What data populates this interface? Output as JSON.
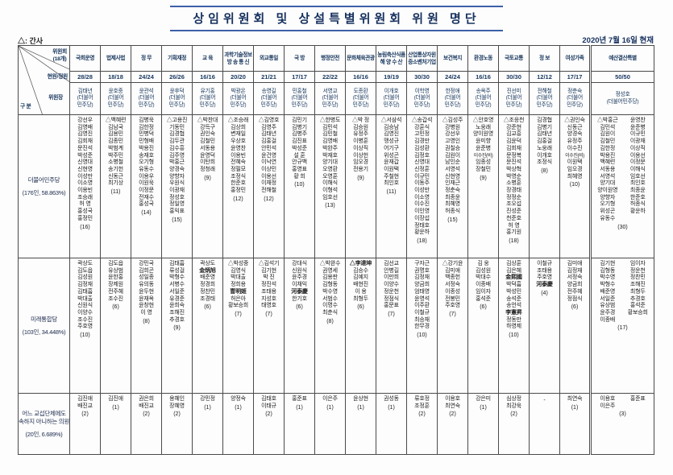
{
  "meta": {
    "title": "상임위원회 및 상설특별위원회 위원 명단",
    "legend": "△: 간사",
    "date": "2020년 7월 16일 현재"
  },
  "corner": {
    "committee": "위원회\n(18개)",
    "quota": "현원/정원",
    "gubun": "구 분",
    "chair": "위원장"
  },
  "committees": [
    {
      "name": "국회운영",
      "quota": "28/28",
      "chair": "김태년",
      "chair_party": "(더불어\n민주당)"
    },
    {
      "name": "법제사법",
      "quota": "18/18",
      "chair": "윤호중",
      "chair_party": "(더불어\n민주당)"
    },
    {
      "name": "정  무",
      "quota": "24/24",
      "chair": "윤관석",
      "chair_party": "(더불어\n민주당)"
    },
    {
      "name": "기획재정",
      "quota": "26/26",
      "chair": "윤후덕",
      "chair_party": "(더불어\n민주당)"
    },
    {
      "name": "교  육",
      "quota": "16/16",
      "chair": "유기홍",
      "chair_party": "(더불어\n민주당)"
    },
    {
      "name": "과학기술정보\n방 송 통 신",
      "quota": "20/20",
      "chair": "박광온",
      "chair_party": "(더불어\n민주당)"
    },
    {
      "name": "외교통일",
      "quota": "21/21",
      "chair": "송영길",
      "chair_party": "(더불어\n민주당)"
    },
    {
      "name": "국  방",
      "quota": "17/17",
      "chair": "민홍철",
      "chair_party": "(더불어\n민주당)"
    },
    {
      "name": "행정안전",
      "quota": "22/22",
      "chair": "서영교",
      "chair_party": "(더불어\n민주당)"
    },
    {
      "name": "문화체육관광",
      "quota": "16/16",
      "chair": "도종환",
      "chair_party": "(더불어\n민주당)"
    },
    {
      "name": "농림축산식품\n해 양 수 산",
      "quota": "19/19",
      "chair": "이개호",
      "chair_party": "(더불어\n민주당)"
    },
    {
      "name": "산업통상자원\n중소벤처기업",
      "quota": "30/30",
      "chair": "이학영",
      "chair_party": "(더불어\n민주당)"
    },
    {
      "name": "보건복지",
      "quota": "24/24",
      "chair": "한정애",
      "chair_party": "(더불어\n민주당)"
    },
    {
      "name": "환경노동",
      "quota": "16/16",
      "chair": "송옥주",
      "chair_party": "(더불어\n민주당)"
    },
    {
      "name": "국토교통",
      "quota": "30/30",
      "chair": "진선미",
      "chair_party": "(더불어\n민주당)"
    },
    {
      "name": "정  보",
      "quota": "12/12",
      "chair": "전해철",
      "chair_party": "(더불어\n민주당)"
    },
    {
      "name": "여성가족",
      "quota": "17/17",
      "chair": "정춘숙",
      "chair_party": "(더불어\n민주당)"
    },
    {
      "name": "예산결산특별",
      "quota": "50/50",
      "chair": "정성호",
      "chair_party": "(더불어민주당)",
      "wide": true
    }
  ],
  "parties": [
    {
      "label": "더불어민주당",
      "sub": "(176인, 58.863%)",
      "cells": [
        {
          "members": [
            "강선우",
            "김영배",
            "김영진",
            "김회재",
            "문진석",
            "박성준",
            "신영대",
            "신현영",
            "이성만",
            "이소영",
            "이용빈",
            "조승래",
            "허 영",
            "홍성국",
            "홍정민"
          ],
          "count": "(16)"
        },
        {
          "members": [
            "△백혜련",
            "김남국",
            "김용민",
            "김종민",
            "박범계",
            "박주민",
            "소병철",
            "송기헌",
            "신동근",
            "최기상"
          ],
          "count": "(11)"
        },
        {
          "members": [
            "김병욱",
            "김한정",
            "민병덕",
            "민형배",
            "박용진",
            "송재호",
            "오기형",
            "유동수",
            "이용우",
            "이원욱",
            "이정문",
            "전재수",
            "홍성국"
          ],
          "count": "(14)"
        },
        {
          "members": [
            "△고용진",
            "기동민",
            "김경협",
            "김두관",
            "김수흥",
            "김주영",
            "박홍근",
            "양경숙",
            "양향자",
            "우원식",
            "이광재",
            "정성호",
            "정일영",
            "홍익표"
          ],
          "count": "(15)"
        },
        {
          "members": [
            "△박찬대",
            "강득구",
            "권인숙",
            "김철민",
            "서동용",
            "윤영덕",
            "이탄희",
            "정청래"
          ],
          "count": "(9)"
        },
        {
          "members": [
            "△조승래",
            "김상희",
            "변재일",
            "우상호",
            "윤영찬",
            "이용빈",
            "전혜숙",
            "정필모",
            "조정식",
            "한준호",
            "홍정민"
          ],
          "count": "(12)"
        },
        {
          "members": [
            "△김영호",
            "김영주",
            "김태년",
            "김홍걸",
            "안민석",
            "윤건영",
            "이낙연",
            "이상민",
            "이용선",
            "이재정",
            "전해철"
          ],
          "count": "(12)"
        },
        {
          "members": [
            "김민기",
            "김병기",
            "김병주",
            "김진표",
            "박성준",
            "설 훈",
            "안규백",
            "홍영표",
            "황 희"
          ],
          "count": "(10)"
        },
        {
          "members": [
            "△한병도",
            "김민석",
            "김민철",
            "김영배",
            "박완주",
            "박재호",
            "양기대",
            "오영환",
            "오영훈",
            "이해식",
            "이형석",
            "임호선"
          ],
          "count": "(13)"
        },
        {
          "members": [
            "△박 정",
            "김승원",
            "유정주",
            "이병훈",
            "이상직",
            "이상헌",
            "임오경",
            "전용기"
          ],
          "count": "(9)"
        },
        {
          "members": [
            "△서삼석",
            "김승남",
            "김영진",
            "맹성규",
            "어기구",
            "위성곤",
            "윤재갑",
            "이원택",
            "주철현",
            "최인호"
          ],
          "count": "(11)"
        },
        {
          "members": [
            "△송갑석",
            "강훈식",
            "고민정",
            "김경만",
            "김성환",
            "김정호",
            "신영대",
            "신정훈",
            "이규민",
            "이동주",
            "이성만",
            "이소영",
            "이수진",
            "이인영",
            "이장섭",
            "정태호",
            "황운하"
          ],
          "count": "(18)"
        },
        {
          "members": [
            "△김성주",
            "강병원",
            "강선우",
            "고영인",
            "권칠승",
            "김원이",
            "남인순",
            "서영석",
            "신현영",
            "인재근",
            "정춘숙",
            "최종윤",
            "최혜영",
            "허종식"
          ],
          "count": "(15)"
        },
        {
          "members": [
            "△안호영",
            "노웅래",
            "양이원영",
            "윤미향",
            "윤준병",
            "이수진(비)",
            "임종성",
            "장철민"
          ],
          "count": "(9)"
        },
        {
          "members": [
            "△조응천",
            "강준현",
            "김교흥",
            "김윤덕",
            "김회재",
            "문정복",
            "문진석",
            "박상혁",
            "박영순",
            "소병훈",
            "장경태",
            "정정순",
            "조오섭",
            "진성준",
            "천준호",
            "허 영",
            "홍기원"
          ],
          "count": "(18)"
        },
        {
          "members": [
            "김경협",
            "김병기",
            "김태년",
            "김홍걸",
            "노웅래",
            "이개호",
            "조정식"
          ],
          "count": "(8)"
        },
        {
          "members": [
            "△권인숙",
            "신동근",
            "양경숙",
            "유정주",
            "이수진",
            "이수진(비)",
            "이원택",
            "임오경",
            "최혜영"
          ],
          "count": "(10)"
        },
        {
          "members": [
            "△박홍근",
            "김민석",
            "김원이",
            "김철민",
            "김한정",
            "박용진",
            "백혜련",
            "서동용",
            "서영석",
            "양기대",
            "양이원영",
            "양향자",
            "오기형",
            "위성곤",
            "유동수",
            "윤영찬",
            "윤준병",
            "이규민",
            "이광재",
            "이상직",
            "이용선",
            "이정문",
            "이해식",
            "임호선",
            "최인호",
            "최종윤",
            "한준호",
            "허종식",
            "황운하"
          ],
          "count": "(30)"
        }
      ]
    },
    {
      "label": "미래통합당",
      "sub": "(103인, 34.448%)",
      "cells": [
        {
          "members": [
            "곽상도",
            "김도읍",
            "김성원",
            "김정재",
            "김태흠",
            "박대출",
            "신원식",
            "이양수",
            "조수진",
            "주호영"
          ],
          "count": "(10)"
        },
        {
          "members": [
            "김도읍",
            "유상범",
            "윤한홍",
            "장제원",
            "전주혜",
            "조수진"
          ],
          "count": "(6)"
        },
        {
          "members": [
            "강민국",
            "김희곤",
            "성일종",
            "유의동",
            "윤두현",
            "윤재옥",
            "윤창현",
            "이 영"
          ],
          "count": "(8)"
        },
        {
          "members": [
            "김태흠",
            "류성걸",
            "박형수",
            "서병수",
            "서일준",
            "유경준",
            "윤희숙",
            "조해진",
            "추경호"
          ],
          "count": "(9)"
        },
        {
          "members": [
            "곽상도",
            "金炳旭",
            "배준영",
            "정경희",
            "정찬민",
            "조경태"
          ],
          "count": "(6)"
        },
        {
          "members": [
            "△박성중",
            "김영식",
            "박대출",
            "정희용",
            "曺明姬",
            "허은아",
            "황보승희"
          ],
          "count": "(7)"
        },
        {
          "members": [
            "△김석기",
            "김기현",
            "박 진",
            "정진석",
            "조태용",
            "지성호",
            "태영호"
          ],
          "count": "(7)"
        },
        {
          "members": [
            "강대식",
            "신원식",
            "윤주경",
            "이채익",
            "河泰慶",
            "한기호"
          ],
          "count": "(6)"
        },
        {
          "members": [
            "△박완수",
            "권영세",
            "김용판",
            "김형동",
            "박수영",
            "서범수",
            "이명수",
            "최춘식"
          ],
          "count": "(8)"
        },
        {
          "members": [
            "△李達坤",
            "김승수",
            "김예지",
            "배현진",
            "이 용",
            "최형두"
          ],
          "count": "(6)"
        },
        {
          "members": [
            "김선교",
            "안병길",
            "이만희",
            "이양수",
            "정운천",
            "정점식",
            "홍문표"
          ],
          "count": "(7)"
        },
        {
          "members": [
            "구자근",
            "권명호",
            "김정재",
            "양금희",
            "엄태영",
            "윤영석",
            "이주환",
            "이철규",
            "최승재",
            "한무경"
          ],
          "count": "(10)"
        },
        {
          "members": [
            "△강기윤",
            "김미애",
            "백종헌",
            "서정숙",
            "이종성",
            "전봉민",
            "주호영"
          ],
          "count": "(7)"
        },
        {
          "members": [
            "김 웅",
            "김성원",
            "박대수",
            "이종배",
            "임이자",
            "홍석준"
          ],
          "count": "(6)"
        },
        {
          "members": [
            "김상훈",
            "김은혜",
            "金熙國",
            "박덕흠",
            "박성민",
            "송석준",
            "송언석",
            "李憲昇",
            "정동만",
            "하영제"
          ],
          "count": "(10)"
        },
        {
          "members": [
            "이철규",
            "조태용",
            "주호영",
            "河泰慶"
          ],
          "count": "(4)"
        },
        {
          "members": [
            "김미애",
            "김정재",
            "서정숙",
            "양금희",
            "전주혜",
            "정점식"
          ],
          "count": "(6)"
        },
        {
          "members": [
            "김기현",
            "김형동",
            "박수영",
            "박형수",
            "배준영",
            "서일준",
            "유상범",
            "윤주경",
            "이종배",
            "임이자",
            "정운천",
            "정찬민",
            "조해진",
            "최형두",
            "추경호",
            "홍석준",
            "황보승희"
          ],
          "count": "(17)"
        }
      ]
    },
    {
      "label": "어느 교섭단체에도\n속하지 아니하는 의원",
      "sub": "(20인, 6.689%)",
      "cells": [
        {
          "members": [
            "김진애",
            "배진교"
          ],
          "count": "(2)"
        },
        {
          "members": [
            "김진애"
          ],
          "count": "(1)"
        },
        {
          "members": [
            "권은희",
            "배진교"
          ],
          "count": "(2)"
        },
        {
          "members": [
            "용혜인",
            "장혜영"
          ],
          "count": "(2)"
        },
        {
          "members": [
            "강민정"
          ],
          "count": "(1)"
        },
        {
          "members": [
            "양정숙"
          ],
          "count": "(1)"
        },
        {
          "members": [
            "김태호",
            "이태규"
          ],
          "count": "(2)"
        },
        {
          "members": [
            "홍준표"
          ],
          "count": "(1)"
        },
        {
          "members": [
            "이은주"
          ],
          "count": "(1)"
        },
        {
          "members": [
            "윤상현"
          ],
          "count": "(1)"
        },
        {
          "members": [
            "권성동"
          ],
          "count": "(1)"
        },
        {
          "members": [
            "류호정",
            "조정훈"
          ],
          "count": "(2)"
        },
        {
          "members": [
            "이용호",
            "최연숙"
          ],
          "count": "(2)"
        },
        {
          "members": [
            "강은미"
          ],
          "count": "(1)"
        },
        {
          "members": [
            "심상정",
            "최강욱"
          ],
          "count": "(2)"
        },
        {
          "members": [],
          "count": "-"
        },
        {
          "members": [
            "최연숙"
          ],
          "count": "(1)"
        },
        {
          "members": [
            "이용호",
            "이은주",
            "홍준표"
          ],
          "count": "(3)"
        }
      ]
    }
  ]
}
